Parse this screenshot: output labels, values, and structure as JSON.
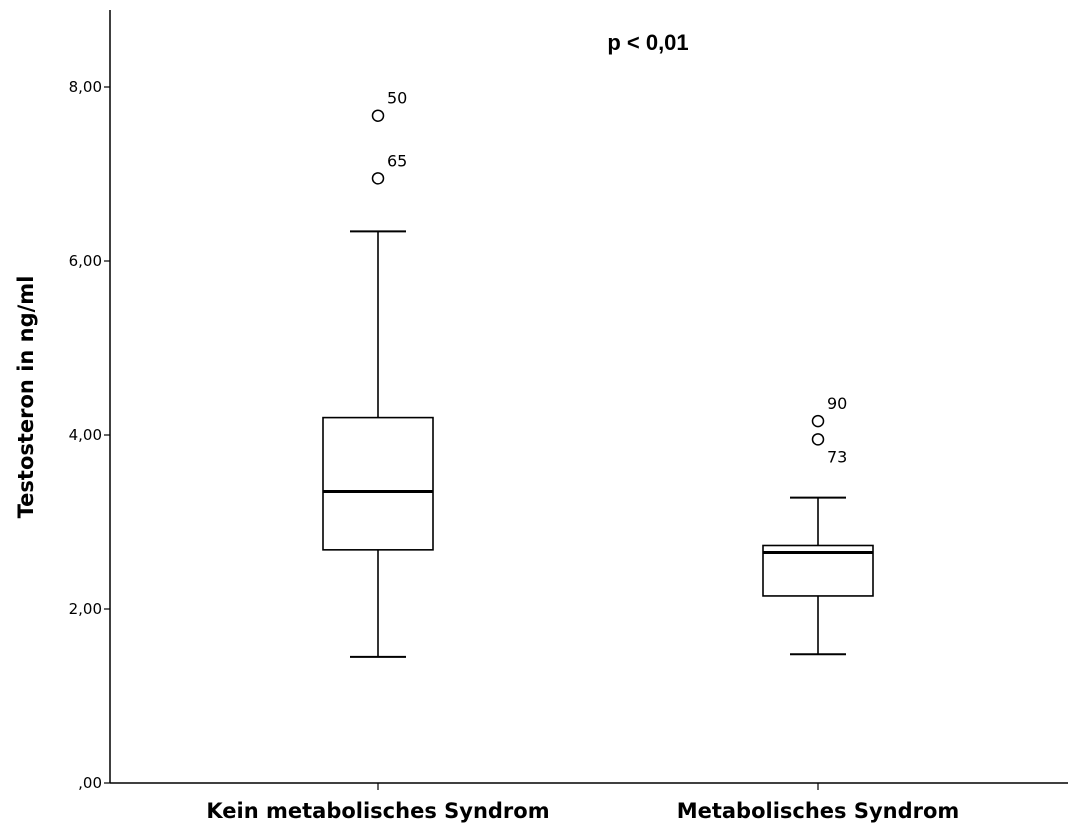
{
  "chart_data": {
    "type": "boxplot",
    "ylabel": "Testosteron in ng/ml",
    "annotation": "p < 0,01",
    "ylim": [
      0,
      8.8
    ],
    "yticks": [
      0,
      2,
      4,
      6,
      8
    ],
    "ytick_labels": [
      ",00",
      "2,00",
      "4,00",
      "6,00",
      "8,00"
    ],
    "categories": [
      "Kein metabolisches Syndrom",
      "Metabolisches Syndrom"
    ],
    "boxes": [
      {
        "category": "Kein metabolisches Syndrom",
        "whisker_low": 1.45,
        "q1": 2.68,
        "median": 3.35,
        "q3": 4.2,
        "whisker_high": 6.34,
        "outliers": [
          {
            "label": "50",
            "value": 7.67
          },
          {
            "label": "65",
            "value": 6.95
          }
        ]
      },
      {
        "category": "Metabolisches Syndrom",
        "whisker_low": 1.48,
        "q1": 2.15,
        "median": 2.65,
        "q3": 2.73,
        "whisker_high": 3.28,
        "outliers": [
          {
            "label": "90",
            "value": 4.16
          },
          {
            "label": "73",
            "value": 3.95
          }
        ]
      }
    ],
    "grid": false,
    "legend": "none"
  }
}
